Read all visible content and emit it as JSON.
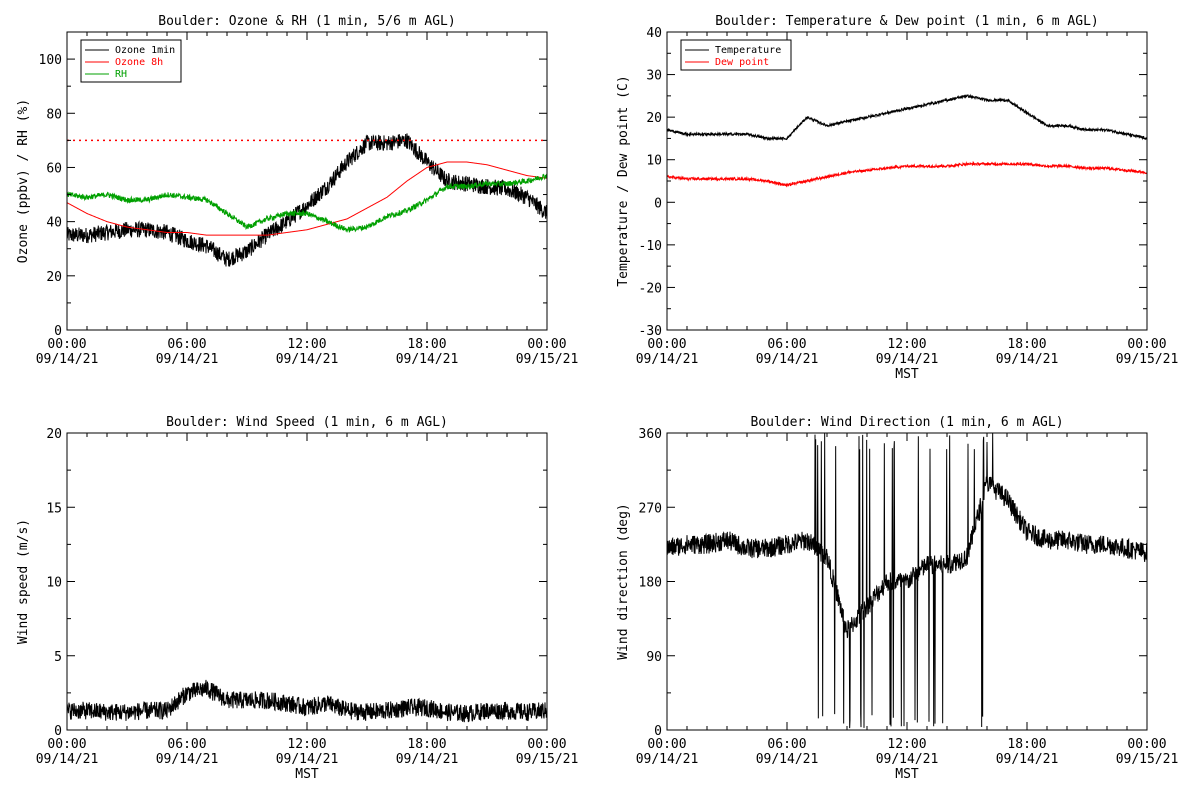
{
  "chart_data": [
    {
      "type": "line",
      "title": "Boulder: Ozone & RH (1 min, 5/6 m AGL)",
      "xlabel": "",
      "ylabel": "Ozone (ppbv) / RH (%)",
      "ylim": [
        0,
        110
      ],
      "yticks": [
        0,
        20,
        40,
        60,
        80,
        100
      ],
      "xticks": [
        {
          "time": "00:00",
          "date": "09/14/21"
        },
        {
          "time": "06:00",
          "date": "09/14/21"
        },
        {
          "time": "12:00",
          "date": "09/14/21"
        },
        {
          "time": "18:00",
          "date": "09/14/21"
        },
        {
          "time": "00:00",
          "date": "09/15/21"
        }
      ],
      "x": [
        0,
        1,
        2,
        3,
        4,
        5,
        6,
        7,
        8,
        9,
        10,
        11,
        12,
        13,
        14,
        15,
        16,
        17,
        18,
        19,
        20,
        21,
        22,
        23,
        24
      ],
      "reference_line": {
        "y": 70,
        "color": "#ff0000",
        "style": "dotted"
      },
      "legend": "top-left",
      "series": [
        {
          "name": "Ozone 1min",
          "color": "#000000",
          "noise": 3,
          "values": [
            35,
            35,
            36,
            37,
            37,
            36,
            33,
            31,
            26,
            29,
            35,
            40,
            46,
            53,
            62,
            69,
            69,
            70,
            62,
            55,
            54,
            53,
            52,
            49,
            43
          ]
        },
        {
          "name": "Ozone 8h",
          "color": "#ff0000",
          "noise": 0,
          "values": [
            47,
            43,
            40,
            38,
            37,
            36,
            36,
            35,
            35,
            35,
            35,
            36,
            37,
            39,
            41,
            45,
            49,
            55,
            60,
            62,
            62,
            61,
            59,
            57,
            56
          ]
        },
        {
          "name": "RH",
          "color": "#00a000",
          "noise": 1,
          "values": [
            50,
            49,
            50,
            48,
            48,
            50,
            49,
            48,
            43,
            38,
            41,
            43,
            43,
            40,
            37,
            38,
            42,
            44,
            48,
            53,
            53,
            54,
            54,
            55,
            57
          ]
        }
      ]
    },
    {
      "type": "line",
      "title": "Boulder: Temperature & Dew point (1 min, 6 m AGL)",
      "xlabel": "MST",
      "ylabel": "Temperature / Dew point (C)",
      "ylim": [
        -30,
        40
      ],
      "yticks": [
        -30,
        -20,
        -10,
        0,
        10,
        20,
        30,
        40
      ],
      "xticks": [
        {
          "time": "00:00",
          "date": "09/14/21"
        },
        {
          "time": "06:00",
          "date": "09/14/21"
        },
        {
          "time": "12:00",
          "date": "09/14/21"
        },
        {
          "time": "18:00",
          "date": "09/14/21"
        },
        {
          "time": "00:00",
          "date": "09/15/21"
        }
      ],
      "x": [
        0,
        1,
        2,
        3,
        4,
        5,
        6,
        7,
        8,
        9,
        10,
        11,
        12,
        13,
        14,
        15,
        16,
        17,
        18,
        19,
        20,
        21,
        22,
        23,
        24
      ],
      "legend": "top-left",
      "series": [
        {
          "name": "Temperature",
          "color": "#000000",
          "noise": 0.3,
          "values": [
            17,
            16,
            16,
            16,
            16,
            15,
            15,
            20,
            18,
            19,
            20,
            21,
            22,
            23,
            24,
            25,
            24,
            24,
            21,
            18,
            18,
            17,
            17,
            16,
            15
          ]
        },
        {
          "name": "Dew point",
          "color": "#ff0000",
          "noise": 0.3,
          "values": [
            6,
            5.5,
            5.5,
            5.5,
            5.5,
            5,
            4,
            5,
            6,
            7,
            7.5,
            8,
            8.5,
            8.5,
            8.5,
            9,
            9,
            9,
            9,
            8.5,
            8.5,
            8,
            8,
            7.5,
            7
          ]
        }
      ]
    },
    {
      "type": "line",
      "title": "Boulder: Wind Speed (1 min, 6 m AGL)",
      "xlabel": "MST",
      "ylabel": "Wind speed (m/s)",
      "ylim": [
        0,
        20
      ],
      "yticks": [
        0,
        5,
        10,
        15,
        20
      ],
      "xticks": [
        {
          "time": "00:00",
          "date": "09/14/21"
        },
        {
          "time": "06:00",
          "date": "09/14/21"
        },
        {
          "time": "12:00",
          "date": "09/14/21"
        },
        {
          "time": "18:00",
          "date": "09/14/21"
        },
        {
          "time": "00:00",
          "date": "09/15/21"
        }
      ],
      "x": [
        0,
        1,
        2,
        3,
        4,
        5,
        6,
        7,
        8,
        9,
        10,
        11,
        12,
        13,
        14,
        15,
        16,
        17,
        18,
        19,
        20,
        21,
        22,
        23,
        24
      ],
      "series": [
        {
          "name": "",
          "color": "#000000",
          "noise": 0.6,
          "values": [
            1.3,
            1.3,
            1.2,
            1.2,
            1.3,
            1.3,
            2.5,
            2.8,
            2,
            2,
            2,
            1.8,
            1.5,
            1.8,
            1.3,
            1.2,
            1.3,
            1.5,
            1.5,
            1.2,
            1.1,
            1.3,
            1.3,
            1.2,
            1.3
          ]
        }
      ]
    },
    {
      "type": "line",
      "title": "Boulder: Wind Direction (1 min, 6 m AGL)",
      "xlabel": "MST",
      "ylabel": "Wind direction (deg)",
      "ylim": [
        0,
        360
      ],
      "yticks": [
        0,
        90,
        180,
        270,
        360
      ],
      "xticks": [
        {
          "time": "00:00",
          "date": "09/14/21"
        },
        {
          "time": "06:00",
          "date": "09/14/21"
        },
        {
          "time": "12:00",
          "date": "09/14/21"
        },
        {
          "time": "18:00",
          "date": "09/14/21"
        },
        {
          "time": "00:00",
          "date": "09/15/21"
        }
      ],
      "x": [
        0,
        1,
        2,
        3,
        4,
        5,
        6,
        7,
        8,
        9,
        10,
        11,
        12,
        13,
        14,
        15,
        16,
        17,
        18,
        19,
        20,
        21,
        22,
        23,
        24
      ],
      "series": [
        {
          "name": "",
          "color": "#000000",
          "noise": 12,
          "values": [
            220,
            225,
            225,
            230,
            220,
            220,
            225,
            230,
            210,
            120,
            150,
            180,
            180,
            200,
            200,
            210,
            300,
            280,
            240,
            230,
            230,
            225,
            225,
            220,
            215
          ],
          "wrap_window": [
            7.2,
            16.4
          ]
        }
      ]
    }
  ]
}
